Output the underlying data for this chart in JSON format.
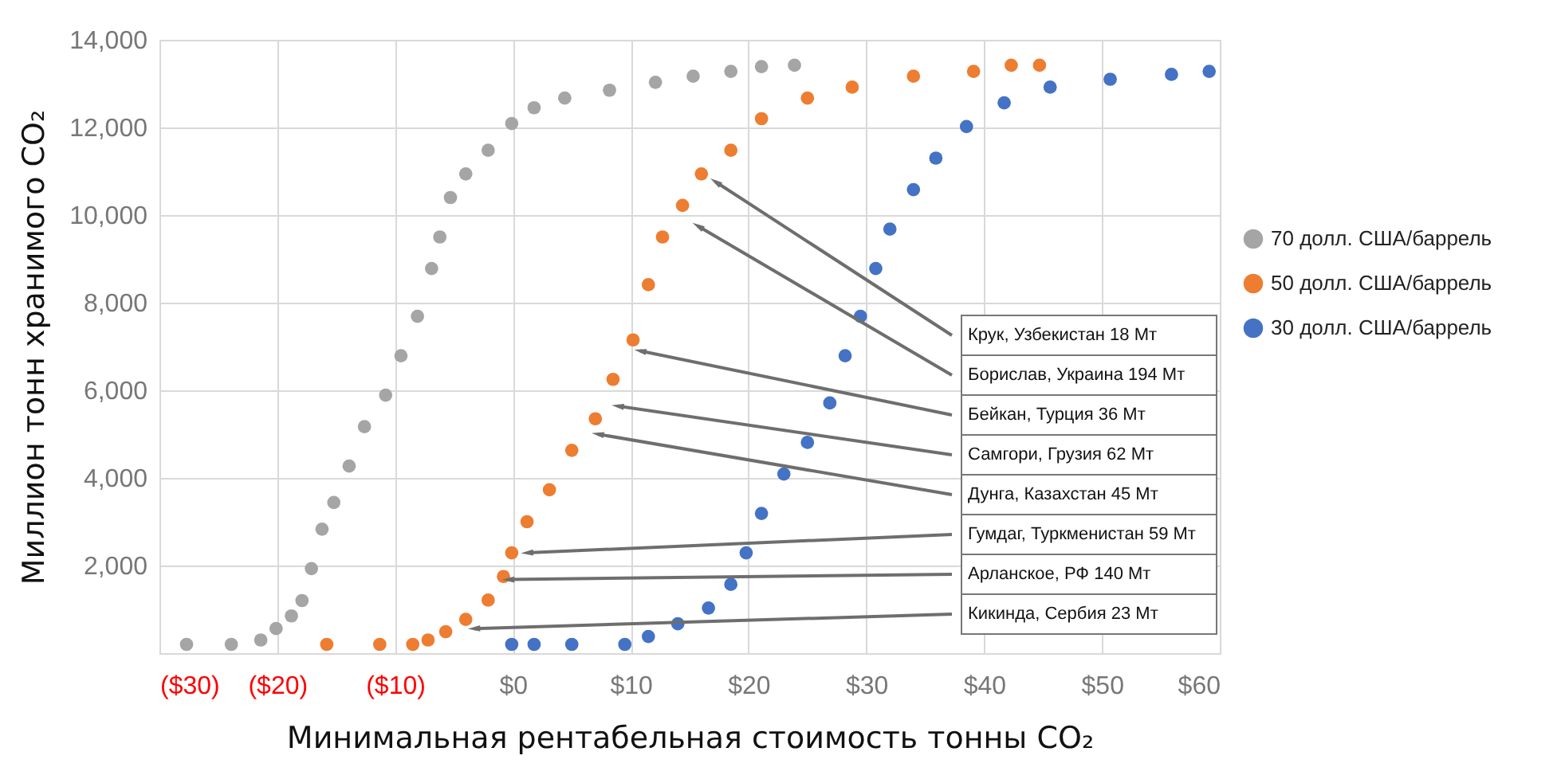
{
  "chart_data": {
    "type": "scatter",
    "xlabel": "Минимальная рентабельная стоимость тонны CO₂",
    "ylabel": "Миллион тонн хранимого CO₂",
    "xlim": [
      -30,
      60
    ],
    "ylim": [
      0,
      14000
    ],
    "xticks": [
      {
        "value": -30,
        "label": "($30)"
      },
      {
        "value": -20,
        "label": "($20)"
      },
      {
        "value": -10,
        "label": "($10)"
      },
      {
        "value": 0,
        "label": "$0"
      },
      {
        "value": 10,
        "label": "$10"
      },
      {
        "value": 20,
        "label": "$20"
      },
      {
        "value": 30,
        "label": "$30"
      },
      {
        "value": 40,
        "label": "$40"
      },
      {
        "value": 50,
        "label": "$50"
      },
      {
        "value": 60,
        "label": "$60"
      }
    ],
    "yticks": [
      {
        "value": 0,
        "label": null
      },
      {
        "value": 2000,
        "label": "2,000"
      },
      {
        "value": 4000,
        "label": "4,000"
      },
      {
        "value": 6000,
        "label": "6,000"
      },
      {
        "value": 8000,
        "label": "8,000"
      },
      {
        "value": 10000,
        "label": "10,000"
      },
      {
        "value": 12000,
        "label": "12,000"
      },
      {
        "value": 14000,
        "label": "14,000"
      }
    ],
    "grid": true,
    "legend": "right",
    "marker": "circle",
    "series": [
      {
        "name": "70 долл. США/баррель",
        "color": "#a5a5a5",
        "x": [
          -27.7,
          -23.9,
          -21.4,
          -20.1,
          -18.8,
          -17.9,
          -17.1,
          -16.2,
          -15.2,
          -13.9,
          -12.6,
          -10.8,
          -9.5,
          -8.1,
          -6.9,
          -6.2,
          -5.3,
          -4.0,
          -2.1,
          -0.1,
          1.8,
          4.4,
          8.2,
          12.1,
          15.3,
          18.5,
          21.1,
          23.9
        ],
        "values": [
          200,
          200,
          300,
          560,
          850,
          1200,
          1930,
          2830,
          3440,
          4270,
          5170,
          5890,
          6790,
          7690,
          8780,
          9500,
          10400,
          10940,
          11480,
          12090,
          12450,
          12670,
          12850,
          13030,
          13170,
          13280,
          13390,
          13420
        ]
      },
      {
        "name": "50 долл. США/баррель",
        "color": "#ed7d31",
        "x": [
          -15.8,
          -11.3,
          -8.5,
          -7.2,
          -5.7,
          -4.0,
          -2.1,
          -0.8,
          -0.1,
          1.2,
          3.1,
          5.0,
          7.0,
          8.5,
          10.2,
          11.5,
          12.7,
          14.4,
          16.0,
          18.5,
          21.1,
          25.0,
          28.8,
          34.0,
          39.1,
          42.3,
          44.7
        ],
        "values": [
          200,
          200,
          200,
          300,
          490,
          770,
          1210,
          1750,
          2290,
          3000,
          3730,
          4630,
          5350,
          6250,
          7150,
          8410,
          9500,
          10220,
          10940,
          11480,
          12200,
          12670,
          12920,
          13170,
          13280,
          13420,
          13420
        ]
      },
      {
        "name": "30 долл. США/баррель",
        "color": "#4472c4",
        "x": [
          -0.1,
          1.8,
          5.0,
          9.5,
          11.5,
          14.0,
          16.6,
          18.5,
          19.8,
          21.1,
          23.0,
          25.0,
          26.9,
          28.2,
          29.5,
          30.8,
          32.0,
          34.0,
          35.9,
          38.5,
          41.7,
          45.6,
          50.7,
          55.9,
          59.1
        ],
        "values": [
          200,
          200,
          200,
          200,
          380,
          670,
          1030,
          1570,
          2290,
          3190,
          4090,
          4810,
          5710,
          6790,
          7690,
          8780,
          9680,
          10580,
          11300,
          12020,
          12560,
          12920,
          13100,
          13210,
          13280
        ]
      }
    ],
    "annotations": [
      {
        "text": "Крук, Узбекистан 18 Мт",
        "x": 17.2,
        "y": 10760
      },
      {
        "text": "Борислав, Украина 194 Мт",
        "x": 15.7,
        "y": 9750
      },
      {
        "text": "Бейкан, Турция 36 Мт",
        "x": 10.8,
        "y": 6900
      },
      {
        "text": "Самгори, Грузия 62 Мт",
        "x": 8.9,
        "y": 5640
      },
      {
        "text": "Дунга, Казахстан 45 Мт",
        "x": 7.2,
        "y": 5000
      },
      {
        "text": "Гумдаг, Туркменистан 59 Мт",
        "x": 1.2,
        "y": 2290
      },
      {
        "text": "Арланское, РФ 140 Мт",
        "x": -0.4,
        "y": 1680
      },
      {
        "text": "Кикинда, Сербия 23 Мт",
        "x": -3.3,
        "y": 560
      }
    ]
  }
}
